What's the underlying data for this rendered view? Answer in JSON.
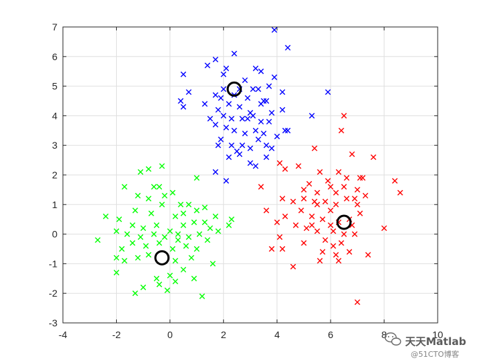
{
  "chart_data": {
    "type": "scatter",
    "title": "",
    "xlabel": "",
    "ylabel": "",
    "xlim": [
      -4,
      10
    ],
    "ylim": [
      -3,
      7
    ],
    "grid": true,
    "x_ticks": [
      "-4",
      "-2",
      "0",
      "2",
      "4",
      "6",
      "8",
      "10"
    ],
    "y_ticks": [
      "-3",
      "-2",
      "-1",
      "0",
      "1",
      "2",
      "3",
      "4",
      "5",
      "6",
      "7"
    ],
    "marker": "x",
    "series": [
      {
        "color": "#0000ff",
        "points": [
          [
            0.5,
            5.4
          ],
          [
            1.4,
            5.7
          ],
          [
            1.7,
            5.9
          ],
          [
            2.0,
            5.4
          ],
          [
            2.1,
            5.6
          ],
          [
            2.4,
            6.1
          ],
          [
            3.2,
            5.6
          ],
          [
            3.4,
            5.5
          ],
          [
            3.9,
            6.9
          ],
          [
            4.4,
            6.3
          ],
          [
            3.9,
            5.3
          ],
          [
            5.9,
            4.8
          ],
          [
            4.2,
            4.8
          ],
          [
            0.7,
            4.8
          ],
          [
            1.3,
            4.4
          ],
          [
            0.4,
            4.5
          ],
          [
            0.5,
            4.3
          ],
          [
            1.7,
            4.7
          ],
          [
            1.9,
            4.6
          ],
          [
            2.6,
            4.9
          ],
          [
            3.1,
            4.9
          ],
          [
            3.3,
            4.9
          ],
          [
            3.5,
            4.5
          ],
          [
            2.2,
            4.4
          ],
          [
            2.6,
            4.3
          ],
          [
            3.0,
            4.1
          ],
          [
            3.4,
            4.4
          ],
          [
            3.6,
            4.5
          ],
          [
            4.2,
            4.2
          ],
          [
            1.8,
            4.2
          ],
          [
            2.0,
            4.0
          ],
          [
            2.3,
            3.9
          ],
          [
            2.7,
            3.9
          ],
          [
            3.1,
            4.0
          ],
          [
            3.4,
            3.8
          ],
          [
            3.7,
            3.8
          ],
          [
            1.7,
            3.7
          ],
          [
            2.1,
            3.6
          ],
          [
            2.4,
            3.5
          ],
          [
            2.8,
            3.4
          ],
          [
            3.2,
            3.5
          ],
          [
            3.5,
            3.4
          ],
          [
            4.3,
            3.5
          ],
          [
            4.4,
            3.5
          ],
          [
            1.9,
            3.2
          ],
          [
            2.3,
            3.0
          ],
          [
            2.7,
            3.0
          ],
          [
            3.0,
            2.9
          ],
          [
            3.6,
            3.0
          ],
          [
            4.0,
            3.3
          ],
          [
            5.3,
            4.0
          ],
          [
            1.8,
            3.0
          ],
          [
            2.5,
            2.8
          ],
          [
            2.6,
            2.7
          ],
          [
            2.2,
            2.6
          ],
          [
            3.0,
            2.4
          ],
          [
            3.2,
            2.3
          ],
          [
            3.6,
            2.6
          ],
          [
            3.8,
            2.9
          ],
          [
            1.7,
            2.1
          ],
          [
            2.1,
            1.8
          ],
          [
            2.9,
            3.9
          ],
          [
            3.3,
            3.2
          ],
          [
            2.4,
            4.7
          ],
          [
            3.8,
            4.1
          ],
          [
            2.0,
            4.9
          ],
          [
            2.8,
            5.2
          ],
          [
            3.7,
            5.0
          ],
          [
            1.5,
            3.9
          ],
          [
            2.9,
            4.6
          ]
        ]
      },
      {
        "color": "#ff0000",
        "points": [
          [
            6.5,
            4.0
          ],
          [
            6.4,
            3.5
          ],
          [
            5.4,
            2.9
          ],
          [
            6.8,
            2.7
          ],
          [
            7.6,
            2.6
          ],
          [
            4.1,
            2.4
          ],
          [
            4.3,
            2.2
          ],
          [
            4.8,
            2.3
          ],
          [
            5.6,
            2.1
          ],
          [
            6.3,
            2.1
          ],
          [
            7.1,
            1.9
          ],
          [
            7.2,
            1.9
          ],
          [
            8.4,
            1.8
          ],
          [
            8.6,
            1.4
          ],
          [
            5.0,
            1.5
          ],
          [
            5.5,
            1.4
          ],
          [
            6.0,
            1.6
          ],
          [
            6.5,
            1.6
          ],
          [
            7.0,
            1.5
          ],
          [
            4.2,
            1.2
          ],
          [
            4.6,
            1.1
          ],
          [
            5.0,
            1.2
          ],
          [
            5.5,
            1.0
          ],
          [
            5.8,
            1.1
          ],
          [
            6.2,
            1.0
          ],
          [
            6.6,
            1.2
          ],
          [
            7.0,
            1.0
          ],
          [
            3.4,
            1.6
          ],
          [
            3.6,
            0.8
          ],
          [
            4.3,
            0.6
          ],
          [
            4.9,
            0.8
          ],
          [
            5.3,
            0.6
          ],
          [
            5.7,
            0.5
          ],
          [
            6.0,
            0.8
          ],
          [
            6.3,
            0.4
          ],
          [
            6.7,
            0.5
          ],
          [
            7.1,
            0.7
          ],
          [
            4.0,
            0.4
          ],
          [
            4.7,
            0.3
          ],
          [
            5.1,
            0.2
          ],
          [
            5.5,
            0.1
          ],
          [
            6.1,
            0.1
          ],
          [
            6.5,
            0.0
          ],
          [
            6.9,
            0.0
          ],
          [
            8.0,
            0.2
          ],
          [
            4.1,
            -0.1
          ],
          [
            5.0,
            -0.3
          ],
          [
            5.8,
            -0.2
          ],
          [
            6.1,
            -0.4
          ],
          [
            6.4,
            -0.3
          ],
          [
            6.7,
            -0.6
          ],
          [
            4.2,
            -0.5
          ],
          [
            3.8,
            -0.5
          ],
          [
            5.7,
            -0.6
          ],
          [
            6.2,
            -0.7
          ],
          [
            7.4,
            -0.7
          ],
          [
            4.6,
            -1.1
          ],
          [
            6.3,
            -0.9
          ],
          [
            7.0,
            -2.3
          ],
          [
            5.9,
            1.8
          ],
          [
            6.6,
            1.9
          ],
          [
            7.3,
            1.3
          ],
          [
            5.2,
            1.7
          ],
          [
            6.8,
            0.3
          ],
          [
            5.6,
            -0.9
          ],
          [
            6.9,
            1.2
          ],
          [
            5.3,
            0.3
          ],
          [
            6.2,
            1.4
          ],
          [
            5.4,
            1.1
          ],
          [
            6.0,
            0.3
          ]
        ]
      },
      {
        "color": "#00ff00",
        "points": [
          [
            -0.3,
            2.3
          ],
          [
            -0.8,
            2.2
          ],
          [
            -1.1,
            2.1
          ],
          [
            1.0,
            1.9
          ],
          [
            -1.7,
            1.6
          ],
          [
            -0.6,
            1.6
          ],
          [
            -0.4,
            1.6
          ],
          [
            -0.2,
            1.3
          ],
          [
            0.1,
            1.4
          ],
          [
            -1.2,
            1.3
          ],
          [
            -0.8,
            1.2
          ],
          [
            0.4,
            1.0
          ],
          [
            -0.3,
            1.0
          ],
          [
            0.7,
            1.0
          ],
          [
            1.3,
            0.9
          ],
          [
            -1.3,
            0.8
          ],
          [
            -0.7,
            0.7
          ],
          [
            0.2,
            0.6
          ],
          [
            0.5,
            0.7
          ],
          [
            1.0,
            0.8
          ],
          [
            -2.4,
            0.6
          ],
          [
            -1.9,
            0.5
          ],
          [
            -1.4,
            0.3
          ],
          [
            -1.0,
            0.2
          ],
          [
            -0.5,
            0.3
          ],
          [
            0.0,
            0.1
          ],
          [
            0.5,
            0.3
          ],
          [
            0.9,
            0.4
          ],
          [
            1.3,
            0.4
          ],
          [
            1.7,
            0.6
          ],
          [
            2.2,
            0.3
          ],
          [
            -2.0,
            0.1
          ],
          [
            -1.6,
            0.0
          ],
          [
            -1.1,
            -0.1
          ],
          [
            -0.6,
            0.0
          ],
          [
            -0.2,
            -0.1
          ],
          [
            0.3,
            0.0
          ],
          [
            0.7,
            -0.1
          ],
          [
            1.1,
            0.0
          ],
          [
            1.4,
            -0.2
          ],
          [
            -2.7,
            -0.2
          ],
          [
            -1.8,
            -0.5
          ],
          [
            -1.4,
            -0.3
          ],
          [
            -0.9,
            -0.4
          ],
          [
            -0.4,
            -0.3
          ],
          [
            0.1,
            -0.5
          ],
          [
            0.6,
            -0.4
          ],
          [
            1.0,
            -0.5
          ],
          [
            -2.0,
            -0.8
          ],
          [
            -1.7,
            -0.9
          ],
          [
            -1.2,
            -0.8
          ],
          [
            -0.8,
            -0.7
          ],
          [
            0.2,
            -0.9
          ],
          [
            0.8,
            -0.8
          ],
          [
            1.6,
            -1.0
          ],
          [
            -2.0,
            -1.3
          ],
          [
            -0.5,
            -1.5
          ],
          [
            0.0,
            -1.4
          ],
          [
            0.5,
            -1.2
          ],
          [
            -1.0,
            -1.8
          ],
          [
            -0.4,
            -1.7
          ],
          [
            0.2,
            -1.6
          ],
          [
            -1.3,
            -2.0
          ],
          [
            1.2,
            -2.1
          ],
          [
            -0.1,
            -1.9
          ],
          [
            0.9,
            -1.5
          ],
          [
            1.5,
            0.2
          ],
          [
            1.8,
            0.1
          ],
          [
            2.3,
            0.5
          ],
          [
            0.3,
            -0.2
          ]
        ]
      }
    ],
    "centroids": {
      "color": "#000000",
      "marker": "o",
      "points": [
        [
          2.4,
          4.9
        ],
        [
          6.5,
          0.4
        ],
        [
          -0.3,
          -0.8
        ]
      ]
    }
  },
  "watermark": {
    "name": "天天Matlab",
    "credit": "@51CTO博客"
  }
}
